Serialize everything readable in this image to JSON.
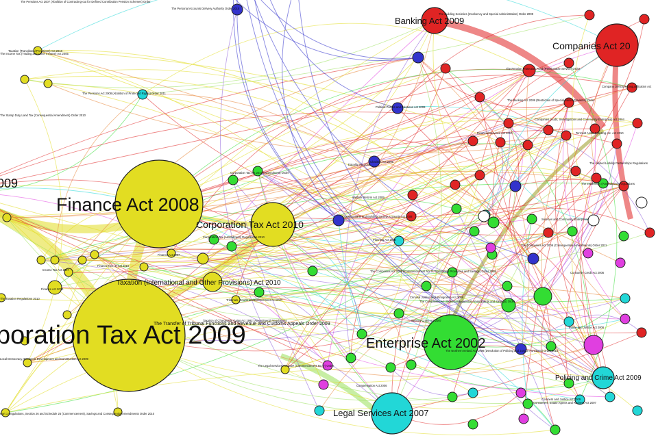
{
  "diagram": {
    "type": "legislation-citation-network-graph",
    "colors": {
      "yellow": "#e2dd22",
      "red": "#e02424",
      "green": "#33dd33",
      "blue": "#3333cc",
      "cyan": "#22d7d7",
      "magenta": "#e03fe0",
      "white": "#ffffff",
      "orange": "#e8863a",
      "olive": "#9a9a22",
      "lime": "#99e05a",
      "purple": "#8a5ad8"
    },
    "labels": {
      "banking_act_2009": "Banking Act 2009",
      "companies_act": "Companies Act 20",
      "finance_act_2008": "Finance Act 2008",
      "corp_tax_act_2010": "Corporation Tax Act 2010",
      "corp_tax_act_2009": "poration Tax Act 2009",
      "enterprise_act_2002": "Enterprise Act 2002",
      "legal_services_act": "Legal Services Act 2007",
      "policing_crime_act": "Policing and Crime Act 2009",
      "taxation_intl": "Taxation (International and Other Provisions) Act 2010",
      "transfer_tribunal": "The Transfer of Tribunal Functions and Revenue and Customs Appeals Order 2009",
      "left_2009": "009",
      "small_companies_2006": "The Companies Act 2006 (Commencement No. 8, Transitional Provisions and Savings) Order 2008",
      "small_companies_2006b": "The Companies Act 2006 (Consequential Amendments and Savings) Order",
      "small_enterprise_ni": "The Northern Ireland Act 1998 (Devolution of Policing and Justice Functions) Order 2010",
      "small_consumer_estate": "Consumers, Estate Agents and Redress Act 2007",
      "small_coroners": "Coroners and Justice Act 2009",
      "small_finance_no3": "Finance (No. 3) Act 2010",
      "small_finance_2010": "Finance Act 2010",
      "small_finance_2007": "Finance Act 2007",
      "small_income_tax": "Income Tax Act 2007",
      "small_pensions_2007": "The Pensions Act 2007 (Abolition of Contracting-out for Defined Contribution Pension Schemes) Order",
      "small_pensions_2008": "The Pensions Act 2008 (Abolition of Protected Rights) Order 2011",
      "small_personal_accounts": "The Personal Accounts Delivery Authority Order 2010",
      "small_taxation_transitional": "Taxation (Transitional Provisions) Act 2010",
      "small_tax_chargeable": "Corporation Tax Act 2010 (Amendment) Order",
      "small_building_societies": "The Building Societies (Insolvency and Special Administration) Order 2009",
      "small_tribunals": "Tribunals, Courts and Enforcement Act 2007",
      "small_regulations_2010": "The Taxation Regulations 2010",
      "small_savings": "Part 1 Regulations, Section 26 and Schedule 25 (Commencement), Savings and Consequential Amendments Order 2010",
      "small_local_democracy": "Local Democracy, Economic Development and Construction Act 2009",
      "small_charities": "Charities Act 2006",
      "small_equality": "Equality Act 2010",
      "small_welfare": "Welfare Reform Act 2009",
      "small_community": "Services and Community Enterprises",
      "small_powers_order": "The Pension Protection Fund (Pensionable Service) Order",
      "small_banking_special": "The Banking Act 2009 (Restriction of Special Bail-in Provision) Order",
      "small_investment": "Companies (Audit, Investigations and Community Enterprise) Act 2004",
      "small_financial_services": "Financial Services Act 2010",
      "small_crossrail": "Terrorist Asset-Freezing etc. Act 2010",
      "small_political": "Political Parties and Elections Act 2009",
      "small_dormant": "Dormant Bank and Building Society Accounts Act 2008",
      "small_planning": "Planning Act 2008",
      "small_cjia": "Criminal Justice and Immigration Act 2008",
      "small_serious_crime": "Serious Crime Act 2007",
      "small_police_justice": "Police and Justice Act 2006",
      "small_sentencing": "The Legal Services Act 2007 (Commencement No. 7) Order",
      "small_compensation": "Compensation Act 2006",
      "small_tax_credits": "Taxation of Chargeable Gains Act 1992 (Amendment) Regulations",
      "small_stamp_duty": "The Stamp Duty Land Tax (Consequential Amendment) Order 2010",
      "small_extra_1": "Consumer Credit Act 2006",
      "small_extra_2": "The Companies Act 2006 (Consequential Amendments) Order 2011",
      "small_extra_3": "The Income Tax (Trading and Other Income) Act 2005",
      "small_extra_4": "The Insolvency (Amendment) Regulations",
      "small_extra_5": "Company Directors Disqualification Act",
      "small_extra_6": "The Limited Liability Partnerships Regulations",
      "small_extra_7": "Corporation Tax (Amendment) Regulations 2010"
    }
  }
}
